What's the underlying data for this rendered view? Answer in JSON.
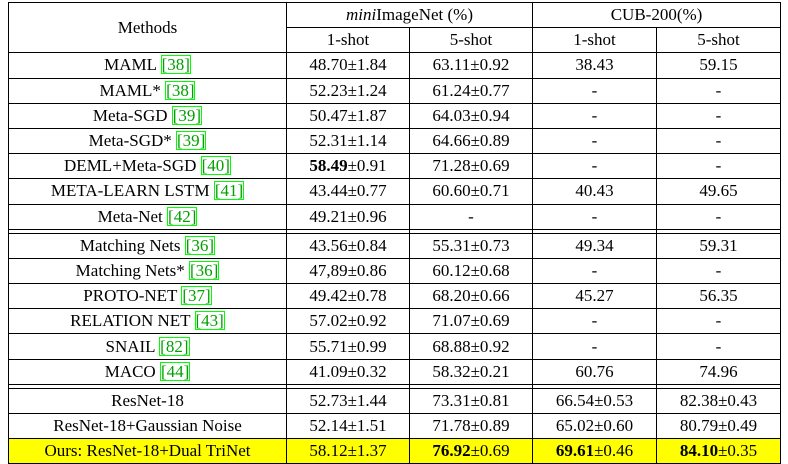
{
  "header": {
    "methods": "Methods",
    "dataset1_prefix": "mini",
    "dataset1_rest": "ImageNet (%)",
    "dataset2": "CUB-200(%)",
    "shot1": "1-shot",
    "shot5": "5-shot"
  },
  "groups": [
    [
      {
        "name": "MAML ",
        "ref": "[38]",
        "c1": "48.70±1.84",
        "c2": "63.11±0.92",
        "c3": "38.43",
        "c4": "59.15"
      },
      {
        "name": "MAML* ",
        "ref": "[38]",
        "c1": "52.23±1.24",
        "c2": "61.24±0.77",
        "c3": "-",
        "c4": "-"
      },
      {
        "name": "Meta-SGD ",
        "ref": "[39]",
        "c1": "50.47±1.87",
        "c2": "64.03±0.94",
        "c3": "-",
        "c4": "-"
      },
      {
        "name": "Meta-SGD* ",
        "ref": "[39]",
        "c1": "52.31±1.14",
        "c2": "64.66±0.89",
        "c3": "-",
        "c4": "-"
      },
      {
        "name": "DEML+Meta-SGD ",
        "ref": "[40]",
        "c1_bold": "58.49",
        "c1": "±0.91",
        "c2": "71.28±0.69",
        "c3": "-",
        "c4": "-"
      },
      {
        "name": "META-LEARN LSTM ",
        "ref": "[41]",
        "c1": "43.44±0.77",
        "c2": "60.60±0.71",
        "c3": "40.43",
        "c4": "49.65"
      },
      {
        "name": "Meta-Net ",
        "ref": "[42]",
        "c1": "49.21±0.96",
        "c2": "-",
        "c3": "-",
        "c4": "-"
      }
    ],
    [
      {
        "name": "Matching Nets ",
        "ref": "[36]",
        "c1": "43.56±0.84",
        "c2": "55.31±0.73",
        "c3": "49.34",
        "c4": "59.31"
      },
      {
        "name": "Matching Nets* ",
        "ref": "[36]",
        "c1": "47,89±0.86",
        "c2": "60.12±0.68",
        "c3": "-",
        "c4": "-"
      },
      {
        "name": "PROTO-NET ",
        "ref": "[37]",
        "c1": "49.42±0.78",
        "c2": "68.20±0.66",
        "c3": "45.27",
        "c4": "56.35"
      },
      {
        "name": "RELATION NET ",
        "ref": "[43]",
        "c1": "57.02±0.92",
        "c2": "71.07±0.69",
        "c3": "-",
        "c4": "-"
      },
      {
        "name": "SNAIL ",
        "ref": "[82]",
        "c1": "55.71±0.99",
        "c2": "68.88±0.92",
        "c3": "-",
        "c4": "-"
      },
      {
        "name": "MACO ",
        "ref": "[44]",
        "c1": "41.09±0.32",
        "c2": "58.32±0.21",
        "c3": "60.76",
        "c4": "74.96"
      }
    ],
    [
      {
        "name": "ResNet-18",
        "c1": "52.73±1.44",
        "c2": "73.31±0.81",
        "c3": "66.54±0.53",
        "c4": "82.38±0.43"
      },
      {
        "name": "ResNet-18+Gaussian Noise",
        "c1": "52.14±1.51",
        "c2": "71.78±0.89",
        "c3": "65.02±0.60",
        "c4": "80.79±0.49"
      }
    ]
  ],
  "ours": {
    "name": "Ours: ResNet-18+Dual TriNet",
    "c1": "58.12±1.37",
    "c2_bold": "76.92",
    "c2": "±0.69",
    "c3_bold": "69.61",
    "c3": "±0.46",
    "c4_bold": "84.10",
    "c4": "±0.35"
  },
  "colors": {
    "highlight": "#ffff00",
    "ref_text": "#00a000",
    "ref_box": "#00ff00"
  }
}
